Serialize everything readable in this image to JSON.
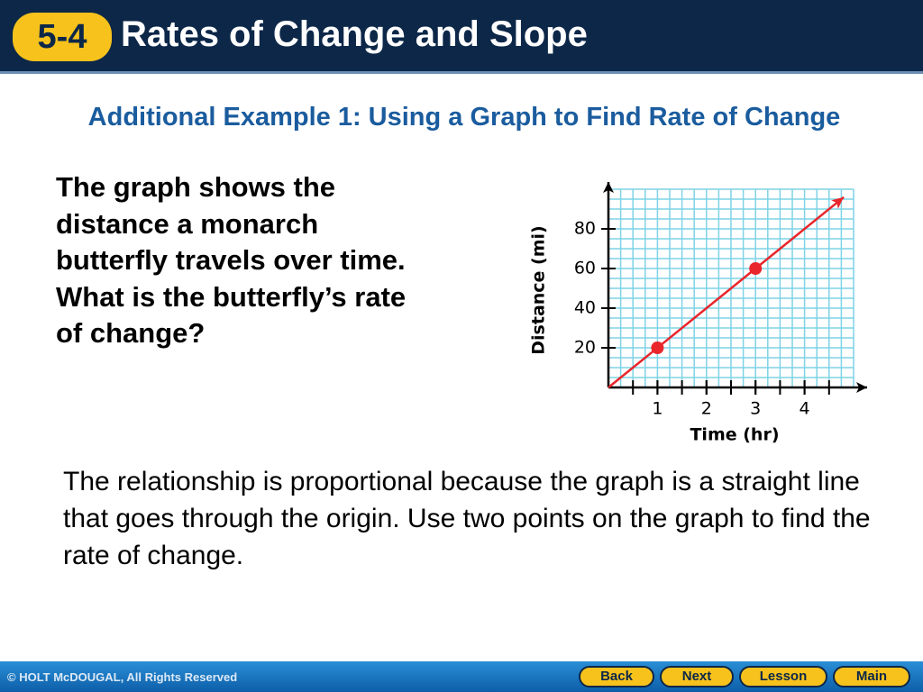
{
  "header": {
    "badge": "5-4",
    "title": "Rates of Change and Slope"
  },
  "subtitle": "Additional Example 1: Using a Graph to Find Rate of Change",
  "question": "The graph shows the distance a monarch butterfly travels over time. What is the butterfly’s rate of change?",
  "chart_data": {
    "type": "line",
    "x_label": "Time (hr)",
    "y_label": "Distance (mi)",
    "xlim": [
      0,
      5
    ],
    "ylim": [
      0,
      100
    ],
    "xticks": [
      1,
      2,
      3,
      4
    ],
    "yticks": [
      20,
      40,
      60,
      80
    ],
    "grid": true,
    "color": "#e8262b",
    "grid_color": "#7fd3e6",
    "series": [
      {
        "x": [
          0,
          4.8
        ],
        "values": [
          0,
          96
        ],
        "style": "arrow"
      },
      {
        "x": [
          1,
          3
        ],
        "values": [
          20,
          60
        ],
        "style": "points"
      }
    ]
  },
  "body": "The relationship is proportional because the graph is a straight line that goes through the origin. Use two points on the graph to find the rate of change.",
  "footer": {
    "copyright": "© HOLT McDOUGAL, All Rights Reserved",
    "buttons": [
      "Back",
      "Next",
      "Lesson",
      "Main"
    ]
  }
}
